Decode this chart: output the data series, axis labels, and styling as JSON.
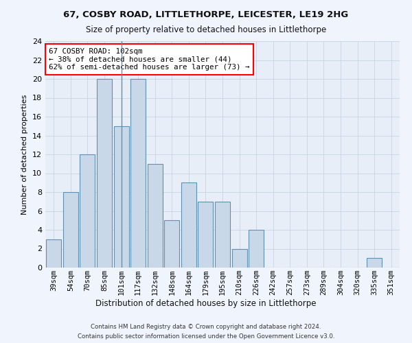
{
  "title1": "67, COSBY ROAD, LITTLETHORPE, LEICESTER, LE19 2HG",
  "title2": "Size of property relative to detached houses in Littlethorpe",
  "xlabel": "Distribution of detached houses by size in Littlethorpe",
  "ylabel": "Number of detached properties",
  "categories": [
    "39sqm",
    "54sqm",
    "70sqm",
    "85sqm",
    "101sqm",
    "117sqm",
    "132sqm",
    "148sqm",
    "164sqm",
    "179sqm",
    "195sqm",
    "210sqm",
    "226sqm",
    "242sqm",
    "257sqm",
    "273sqm",
    "289sqm",
    "304sqm",
    "320sqm",
    "335sqm",
    "351sqm"
  ],
  "values": [
    3,
    8,
    12,
    20,
    15,
    20,
    11,
    5,
    9,
    7,
    7,
    2,
    4,
    0,
    0,
    0,
    0,
    0,
    0,
    1,
    0
  ],
  "bar_color": "#c8d8e8",
  "bar_edge_color": "#6090b0",
  "highlight_bar_index": 4,
  "annotation_box_text": "67 COSBY ROAD: 102sqm\n← 38% of detached houses are smaller (44)\n62% of semi-detached houses are larger (73) →",
  "annotation_box_color": "white",
  "annotation_box_edge_color": "red",
  "grid_color": "#c8d4e4",
  "background_color": "#e8eef8",
  "fig_background_color": "#f0f4fc",
  "ylim": [
    0,
    24
  ],
  "yticks": [
    0,
    2,
    4,
    6,
    8,
    10,
    12,
    14,
    16,
    18,
    20,
    22,
    24
  ],
  "footer1": "Contains HM Land Registry data © Crown copyright and database right 2024.",
  "footer2": "Contains public sector information licensed under the Open Government Licence v3.0."
}
